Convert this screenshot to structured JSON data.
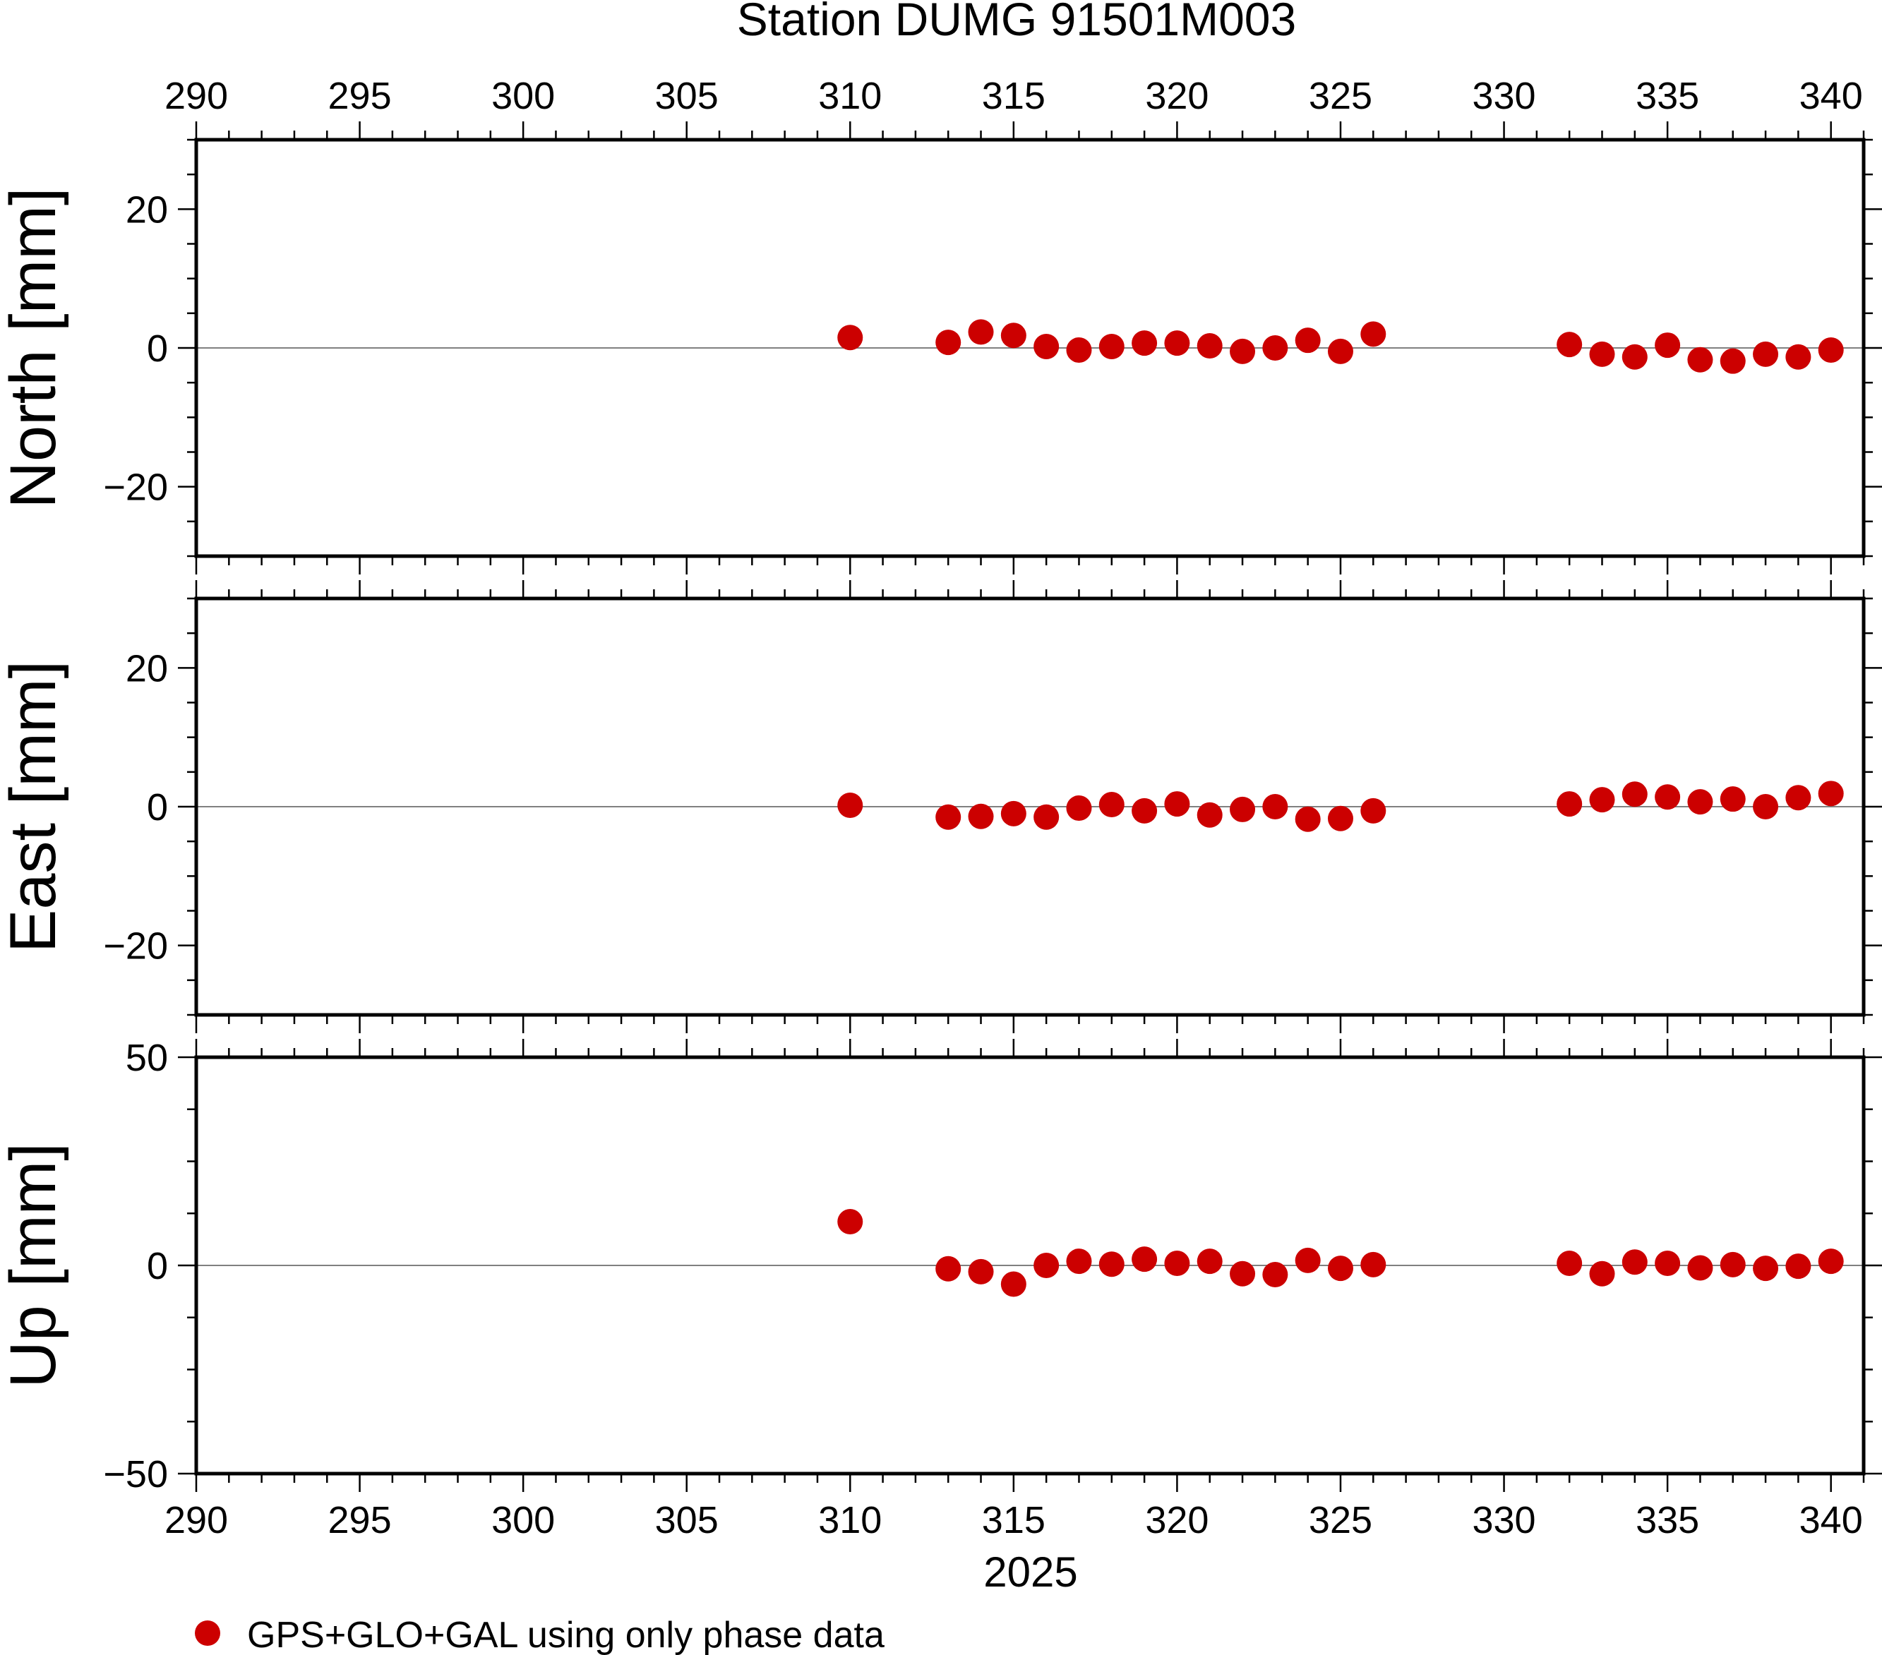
{
  "title": "Station DUMG 91501M003",
  "xlabel": "2025",
  "legend": {
    "label": "GPS+GLO+GAL using only phase data",
    "color": "#cc0000",
    "position": "bottom-left"
  },
  "colors": {
    "marker": "#cc0000",
    "frame": "#000000",
    "zero_line": "#808080"
  },
  "x_axis": {
    "range": [
      290,
      341
    ],
    "major_ticks": [
      290,
      295,
      300,
      305,
      310,
      315,
      320,
      325,
      330,
      335,
      340
    ],
    "minor_step": 1,
    "tick_labels_top": true,
    "tick_labels_bottom": true
  },
  "chart_data": [
    {
      "type": "scatter",
      "name": "north",
      "ylabel": "North [mm]",
      "ylim": [
        -30,
        30
      ],
      "yticks": [
        -20,
        0,
        20
      ],
      "ytick_labels": [
        "−20",
        "0",
        "20"
      ],
      "x": [
        310,
        313,
        314,
        315,
        316,
        317,
        318,
        319,
        320,
        321,
        322,
        323,
        324,
        325,
        326,
        332,
        333,
        334,
        335,
        336,
        337,
        338,
        339,
        340
      ],
      "y": [
        1.5,
        0.8,
        2.3,
        1.8,
        0.2,
        -0.3,
        0.2,
        0.7,
        0.7,
        0.3,
        -0.5,
        0.0,
        1.1,
        -0.5,
        2.0,
        0.5,
        -0.9,
        -1.3,
        0.4,
        -1.7,
        -1.9,
        -0.9,
        -1.3,
        -0.3
      ]
    },
    {
      "type": "scatter",
      "name": "east",
      "ylabel": "East [mm]",
      "ylim": [
        -30,
        30
      ],
      "yticks": [
        -20,
        0,
        20
      ],
      "ytick_labels": [
        "−20",
        "0",
        "20"
      ],
      "x": [
        310,
        313,
        314,
        315,
        316,
        317,
        318,
        319,
        320,
        321,
        322,
        323,
        324,
        325,
        326,
        332,
        333,
        334,
        335,
        336,
        337,
        338,
        339,
        340
      ],
      "y": [
        0.2,
        -1.5,
        -1.4,
        -1.0,
        -1.5,
        -0.2,
        0.3,
        -0.6,
        0.4,
        -1.2,
        -0.4,
        0.0,
        -1.8,
        -1.7,
        -0.6,
        0.4,
        1.0,
        1.8,
        1.4,
        0.7,
        1.1,
        0.0,
        1.3,
        1.9
      ]
    },
    {
      "type": "scatter",
      "name": "up",
      "ylabel": "Up [mm]",
      "ylim": [
        -50,
        50
      ],
      "yticks": [
        -50,
        0,
        50
      ],
      "ytick_labels": [
        "−50",
        "0",
        "50"
      ],
      "x": [
        310,
        313,
        314,
        315,
        316,
        317,
        318,
        319,
        320,
        321,
        322,
        323,
        324,
        325,
        326,
        332,
        333,
        334,
        335,
        336,
        337,
        338,
        339,
        340
      ],
      "y": [
        10.5,
        -0.8,
        -1.5,
        -4.5,
        0.0,
        1.0,
        0.3,
        1.5,
        0.5,
        1.0,
        -2.0,
        -2.2,
        1.2,
        -0.7,
        0.2,
        0.5,
        -2.0,
        0.8,
        0.5,
        -0.6,
        0.2,
        -0.7,
        -0.2,
        1.0
      ]
    }
  ]
}
